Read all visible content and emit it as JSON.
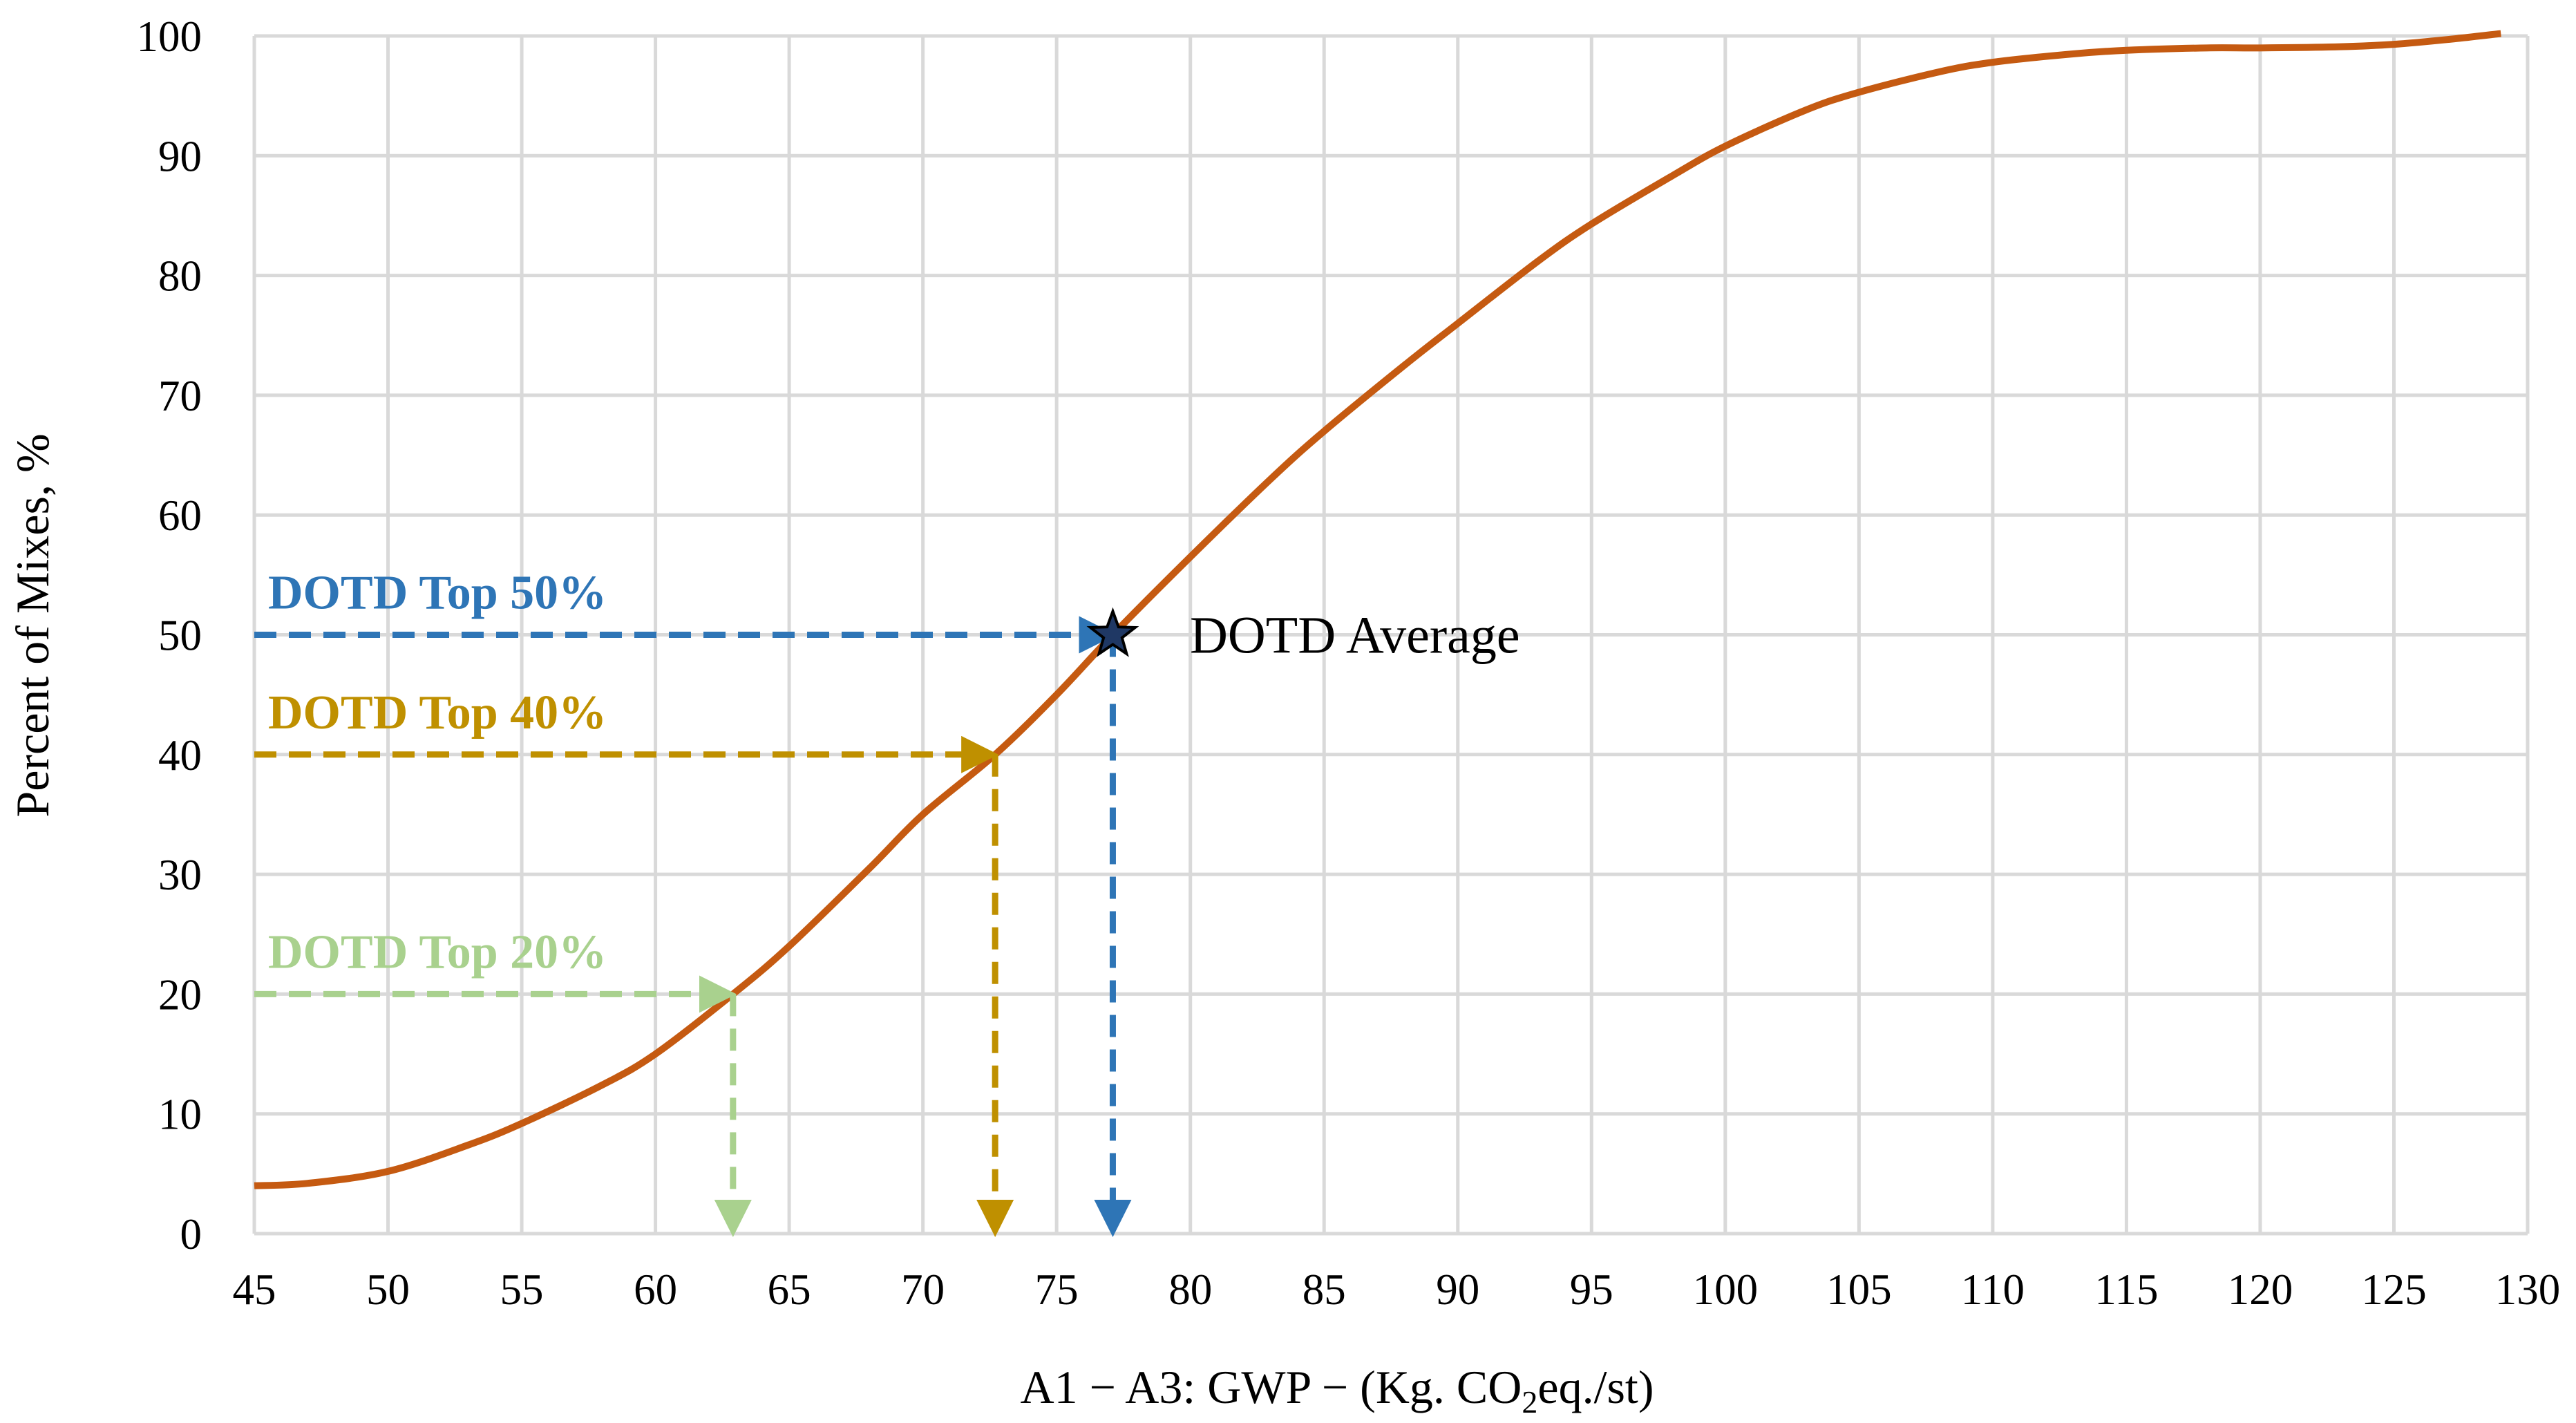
{
  "chart_data": {
    "type": "line",
    "title": "",
    "xlabel": "A1 − A3: GWP − (Kg. CO",
    "xlabel_sub": "2",
    "xlabel_suffix": "eq./st)",
    "ylabel": "Percent of Mixes, %",
    "xlim": [
      45,
      130
    ],
    "ylim": [
      0,
      100
    ],
    "x_ticks": [
      "45",
      "50",
      "55",
      "60",
      "65",
      "70",
      "75",
      "80",
      "85",
      "90",
      "95",
      "100",
      "105",
      "110",
      "115",
      "120",
      "125",
      "130"
    ],
    "y_ticks": [
      "0",
      "10",
      "20",
      "30",
      "40",
      "50",
      "60",
      "70",
      "80",
      "90",
      "100"
    ],
    "grid": true,
    "legend": "none",
    "series": [
      {
        "color": "#c55a11",
        "x": [
          45,
          47,
          50,
          53,
          55,
          58,
          60,
          62.9,
          65,
          68,
          70,
          72.7,
          75,
          77.1,
          80,
          83,
          85,
          88,
          90,
          93,
          95,
          98,
          100,
          103,
          105,
          108,
          110,
          113,
          115,
          118,
          120,
          123,
          125,
          127,
          129
        ],
        "y": [
          4,
          4.2,
          5.2,
          7.4,
          9.2,
          12.4,
          15,
          20,
          24,
          30.5,
          35,
          40,
          45,
          50,
          56.5,
          63,
          67,
          72.5,
          76,
          81.2,
          84.3,
          88.3,
          90.8,
          93.8,
          95.3,
          97,
          97.8,
          98.5,
          98.8,
          99,
          99,
          99.1,
          99.3,
          99.7,
          100.2
        ]
      }
    ],
    "annotations": [
      {
        "label": "DOTD Top 50%",
        "x": 77.1,
        "y": 50,
        "color": "#2e75b6"
      },
      {
        "label": "DOTD Top 40%",
        "x": 72.7,
        "y": 40,
        "color": "#bf9000"
      },
      {
        "label": "DOTD Top 20%",
        "x": 62.9,
        "y": 20,
        "color": "#a9d18e"
      }
    ],
    "marker": {
      "label": "DOTD Average",
      "x": 77.1,
      "y": 50,
      "shape": "star"
    }
  }
}
